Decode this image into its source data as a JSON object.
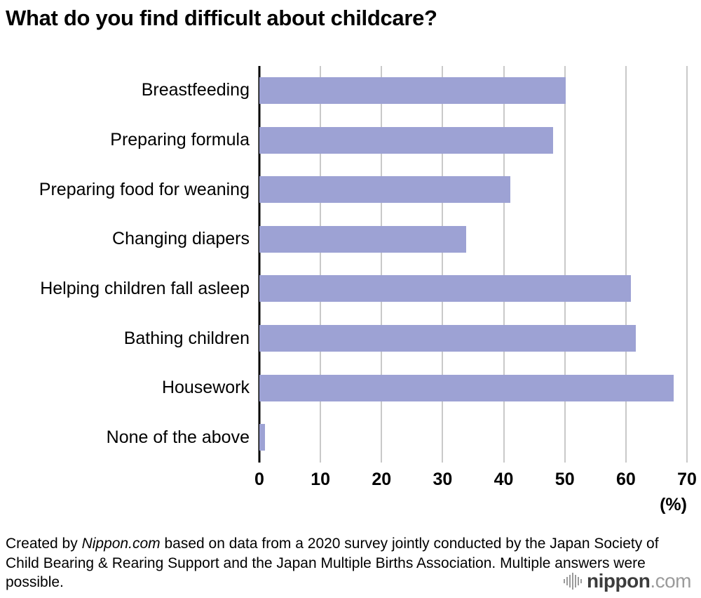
{
  "chart_data": {
    "type": "bar",
    "orientation": "horizontal",
    "title": "What do you find difficult about childcare?",
    "categories": [
      "Breastfeeding",
      "Preparing formula",
      "Preparing food for weaning",
      "Changing diapers",
      "Helping children fall asleep",
      "Bathing children",
      "Housework",
      "None of the above"
    ],
    "values": [
      50.2,
      48.1,
      41.1,
      33.9,
      60.8,
      61.6,
      67.8,
      0.9
    ],
    "xlim": [
      0,
      70
    ],
    "x_ticks": [
      0,
      10,
      20,
      30,
      40,
      50,
      60,
      70
    ],
    "x_tick_labels": [
      "0",
      "10",
      "20",
      "30",
      "40",
      "50",
      "60",
      "70"
    ],
    "unit_label": "(%)",
    "bar_color": "#9da2d4",
    "gridline_color": "#c9c9c9",
    "axis_color": "#000000",
    "grid": true,
    "legend": false
  },
  "footer": {
    "prefix": "Created by ",
    "brand": "Nippon.com",
    "suffix": " based on data from a 2020 survey jointly conducted by the Japan Society of Child Bearing & Rearing Support and the Japan Multiple Births Association. Multiple answers were possible."
  },
  "logo": {
    "icon": "soundwave-bars-icon",
    "name": "nippon",
    "tld": ".com"
  }
}
